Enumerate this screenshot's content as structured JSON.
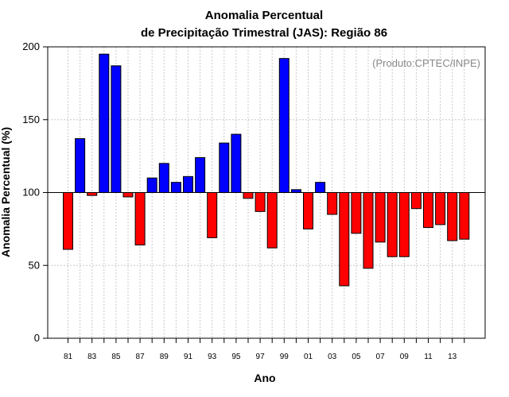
{
  "chart_data": {
    "type": "bar",
    "title_line1": "Anomalia Percentual",
    "title_line2": "de Precipitação Trimestral (JAS): Região 86",
    "xlabel": "Ano",
    "ylabel": "Anomalia Percentual (%)",
    "credit": "(Produto:CPTEC/INPE)",
    "ylim": [
      0,
      200
    ],
    "yticks": [
      0,
      50,
      100,
      150,
      200
    ],
    "baseline": 100,
    "colors": {
      "above": "#0000ff",
      "below": "#ff0000"
    },
    "categories": [
      "81",
      "82",
      "83",
      "84",
      "85",
      "86",
      "87",
      "88",
      "89",
      "90",
      "91",
      "92",
      "93",
      "94",
      "95",
      "96",
      "97",
      "98",
      "99",
      "00",
      "01",
      "02",
      "03",
      "04",
      "05",
      "06",
      "07",
      "08",
      "09",
      "10",
      "11",
      "12",
      "13",
      "14"
    ],
    "xtick_labels": [
      "81",
      "83",
      "85",
      "87",
      "89",
      "91",
      "93",
      "95",
      "97",
      "99",
      "01",
      "03",
      "05",
      "07",
      "09",
      "11",
      "13"
    ],
    "values": [
      61,
      137,
      98,
      195,
      187,
      97,
      64,
      110,
      120,
      107,
      111,
      124,
      69,
      134,
      140,
      96,
      87,
      62,
      192,
      102,
      75,
      107,
      85,
      36,
      72,
      48,
      66,
      56,
      56,
      89,
      76,
      78,
      67,
      68
    ]
  }
}
